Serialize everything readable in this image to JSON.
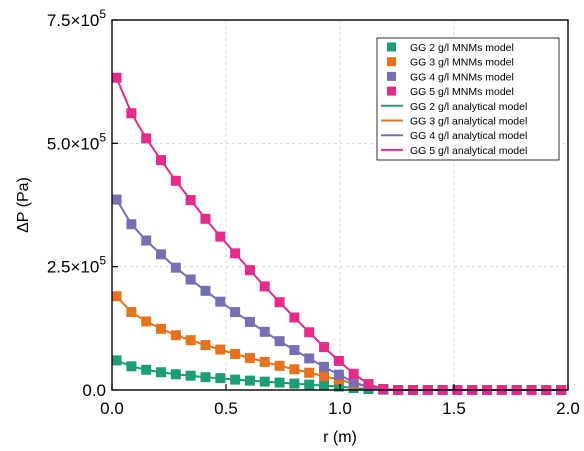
{
  "chart_data": {
    "type": "line",
    "title": "",
    "xlabel": "r (m)",
    "ylabel": "ΔP (Pa)",
    "xlim": [
      0,
      2.0
    ],
    "ylim": [
      0,
      750000
    ],
    "grid": true,
    "legend_position": "top-right",
    "x_ticks": [
      0,
      0.5,
      1.0,
      1.5,
      2.0
    ],
    "x_tick_labels": [
      "0.0",
      "0.5",
      "1.0",
      "1.5",
      "2.0"
    ],
    "y_ticks": [
      0,
      250000,
      500000,
      750000
    ],
    "y_tick_labels": [
      "0.0",
      "2.5×10",
      "5.0×10",
      "7.5×10"
    ],
    "y_tick_exponent": "5",
    "x": [
      0.02,
      0.085,
      0.15,
      0.215,
      0.28,
      0.345,
      0.41,
      0.475,
      0.54,
      0.605,
      0.67,
      0.735,
      0.8,
      0.865,
      0.93,
      0.995,
      1.06,
      1.125,
      1.19,
      1.255,
      1.32,
      1.385,
      1.45,
      1.515,
      1.58,
      1.645,
      1.71,
      1.775,
      1.84,
      1.905,
      1.97
    ],
    "series": [
      {
        "name": "GG 2 g/l MNMs model",
        "kind": "marker",
        "color": "#1b9e77",
        "values": [
          60000,
          48000,
          41000,
          36000,
          32000,
          29000,
          26000,
          24000,
          21000,
          19000,
          17000,
          15000,
          13000,
          11000,
          9000,
          7000,
          4000,
          2000,
          500,
          0,
          0,
          0,
          0,
          0,
          0,
          0,
          0,
          0,
          0,
          0,
          0
        ]
      },
      {
        "name": "GG 3 g/l MNMs model",
        "kind": "marker",
        "color": "#e8711c",
        "values": [
          190000,
          158000,
          139000,
          124000,
          111000,
          101000,
          91000,
          82000,
          73000,
          65000,
          57000,
          49000,
          42000,
          35000,
          28000,
          21000,
          13000,
          7000,
          2000,
          0,
          0,
          0,
          0,
          0,
          0,
          0,
          0,
          0,
          0,
          0,
          0
        ]
      },
      {
        "name": "GG 4 g/l MNMs model",
        "kind": "marker",
        "color": "#7570b3",
        "values": [
          386000,
          336000,
          303000,
          275000,
          248000,
          224000,
          201000,
          179000,
          158000,
          138000,
          118000,
          99000,
          81000,
          64000,
          47000,
          31000,
          16000,
          6000,
          1000,
          0,
          0,
          0,
          0,
          0,
          0,
          0,
          0,
          0,
          0,
          0,
          0
        ]
      },
      {
        "name": "GG 5 g/l MNMs model",
        "kind": "marker",
        "color": "#e7298a",
        "values": [
          633000,
          561000,
          510000,
          466000,
          424000,
          385000,
          347000,
          311000,
          277000,
          243000,
          210000,
          178000,
          147000,
          117000,
          87000,
          59000,
          33000,
          12000,
          2000,
          0,
          0,
          0,
          0,
          0,
          0,
          0,
          0,
          0,
          0,
          0,
          0
        ]
      },
      {
        "name": "GG 2 g/l analytical model",
        "kind": "line",
        "color": "#1b9e77",
        "ref": 0
      },
      {
        "name": "GG 3 g/l analytical model",
        "kind": "line",
        "color": "#e8711c",
        "ref": 1
      },
      {
        "name": "GG 4 g/l analytical model",
        "kind": "line",
        "color": "#7570b3",
        "ref": 2
      },
      {
        "name": "GG 5 g/l analytical model",
        "kind": "line",
        "color": "#e7298a",
        "ref": 3
      }
    ]
  }
}
